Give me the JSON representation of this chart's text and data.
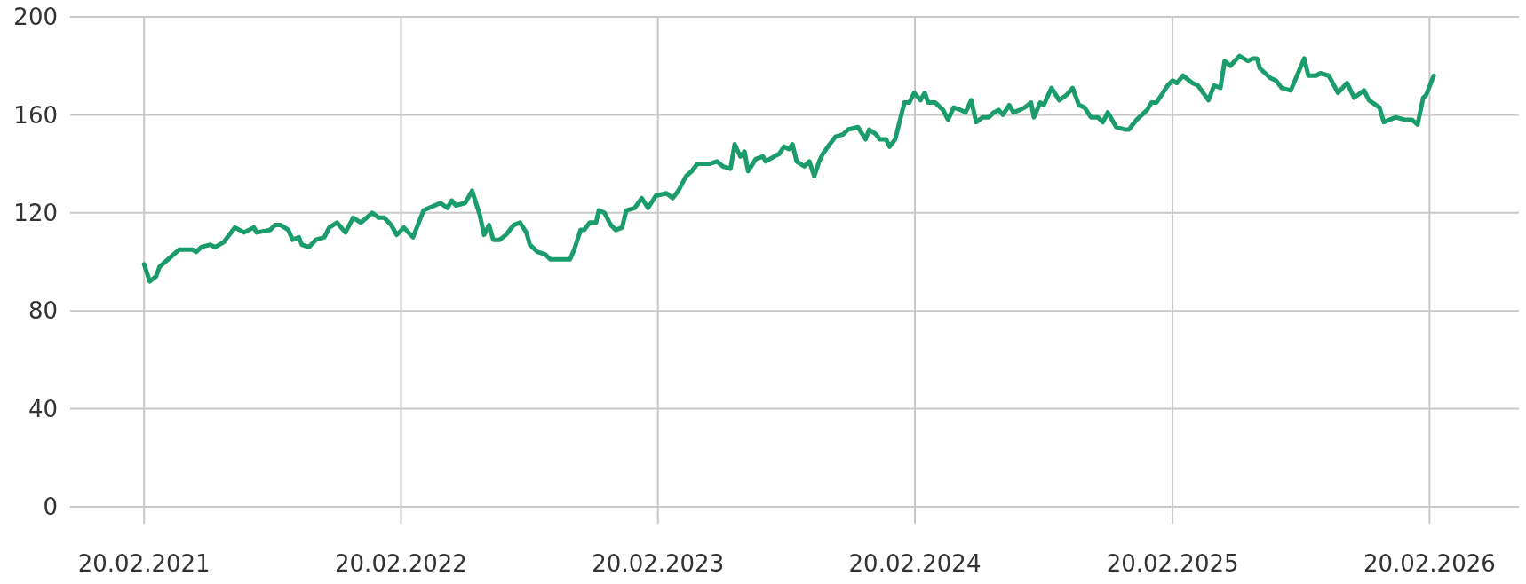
{
  "chart_data": {
    "type": "line",
    "grid": true,
    "xlim": [
      "2020-11-07",
      "2026-06-27"
    ],
    "ylim": [
      0,
      200
    ],
    "yticks": [
      0,
      40,
      80,
      120,
      160,
      200
    ],
    "xticks": [
      {
        "value": "2021-02-20",
        "label": "20.02.2021"
      },
      {
        "value": "2022-02-20",
        "label": "20.02.2022"
      },
      {
        "value": "2023-02-20",
        "label": "20.02.2023"
      },
      {
        "value": "2024-02-20",
        "label": "20.02.2024"
      },
      {
        "value": "2025-02-20",
        "label": "20.02.2025"
      },
      {
        "value": "2026-02-20",
        "label": "20.02.2026"
      }
    ],
    "x": [
      "2021-02-20",
      "2021-02-28",
      "2021-03-09",
      "2021-03-14",
      "2021-03-26",
      "2021-04-11",
      "2021-04-30",
      "2021-05-05",
      "2021-05-12",
      "2021-05-25",
      "2021-06-01",
      "2021-06-13",
      "2021-06-29",
      "2021-07-12",
      "2021-07-26",
      "2021-07-30",
      "2021-08-18",
      "2021-08-25",
      "2021-09-02",
      "2021-09-13",
      "2021-09-19",
      "2021-09-28",
      "2021-10-02",
      "2021-10-12",
      "2021-10-22",
      "2021-11-03",
      "2021-11-10",
      "2021-11-21",
      "2021-12-03",
      "2021-12-14",
      "2021-12-25",
      "2022-01-10",
      "2022-01-19",
      "2022-01-27",
      "2022-02-06",
      "2022-02-14",
      "2022-02-24",
      "2022-03-09",
      "2022-03-24",
      "2022-04-17",
      "2022-04-27",
      "2022-05-03",
      "2022-05-09",
      "2022-05-22",
      "2022-06-01",
      "2022-06-12",
      "2022-06-18",
      "2022-06-25",
      "2022-07-01",
      "2022-07-10",
      "2022-07-19",
      "2022-07-30",
      "2022-08-08",
      "2022-08-17",
      "2022-08-22",
      "2022-09-02",
      "2022-09-13",
      "2022-09-20",
      "2022-10-11",
      "2022-10-18",
      "2022-10-24",
      "2022-11-02",
      "2022-11-07",
      "2022-11-15",
      "2022-11-24",
      "2022-11-28",
      "2022-12-06",
      "2022-12-15",
      "2022-12-22",
      "2022-12-31",
      "2023-01-06",
      "2023-01-18",
      "2023-01-28",
      "2023-02-06",
      "2023-02-17",
      "2023-03-04",
      "2023-03-13",
      "2023-03-21",
      "2023-04-01",
      "2023-04-09",
      "2023-04-17",
      "2023-05-04",
      "2023-05-15",
      "2023-05-23",
      "2023-06-03",
      "2023-06-09",
      "2023-06-17",
      "2023-06-23",
      "2023-06-28",
      "2023-07-09",
      "2023-07-19",
      "2023-07-23",
      "2023-08-04",
      "2023-08-11",
      "2023-08-18",
      "2023-08-25",
      "2023-08-30",
      "2023-09-05",
      "2023-09-16",
      "2023-09-23",
      "2023-09-30",
      "2023-10-07",
      "2023-10-12",
      "2023-10-22",
      "2023-10-30",
      "2023-11-10",
      "2023-11-17",
      "2023-12-01",
      "2023-12-12",
      "2023-12-17",
      "2023-12-27",
      "2024-01-01",
      "2024-01-10",
      "2024-01-15",
      "2024-01-23",
      "2024-02-05",
      "2024-02-12",
      "2024-02-19",
      "2024-02-28",
      "2024-03-05",
      "2024-03-10",
      "2024-03-20",
      "2024-03-31",
      "2024-04-07",
      "2024-04-15",
      "2024-04-25",
      "2024-05-02",
      "2024-05-10",
      "2024-05-17",
      "2024-05-26",
      "2024-06-04",
      "2024-06-11",
      "2024-06-18",
      "2024-06-24",
      "2024-07-03",
      "2024-07-09",
      "2024-07-18",
      "2024-07-25",
      "2024-08-03",
      "2024-08-07",
      "2024-08-16",
      "2024-08-21",
      "2024-09-01",
      "2024-09-12",
      "2024-09-22",
      "2024-10-01",
      "2024-10-10",
      "2024-10-18",
      "2024-10-27",
      "2024-11-06",
      "2024-11-13",
      "2024-11-20",
      "2024-12-02",
      "2024-12-14",
      "2024-12-20",
      "2024-12-31",
      "2025-01-15",
      "2025-01-21",
      "2025-01-28",
      "2025-02-04",
      "2025-02-13",
      "2025-02-20",
      "2025-02-26",
      "2025-03-07",
      "2025-03-20",
      "2025-03-28",
      "2025-04-12",
      "2025-04-20",
      "2025-04-29",
      "2025-05-05",
      "2025-05-13",
      "2025-05-26",
      "2025-06-07",
      "2025-06-14",
      "2025-06-20",
      "2025-06-24",
      "2025-07-09",
      "2025-07-17",
      "2025-07-25",
      "2025-08-07",
      "2025-08-26",
      "2025-09-01",
      "2025-09-12",
      "2025-09-18",
      "2025-09-30",
      "2025-10-13",
      "2025-10-26",
      "2025-11-05",
      "2025-11-19",
      "2025-11-26",
      "2025-12-11",
      "2025-12-17",
      "2026-01-03",
      "2026-01-15",
      "2026-01-26",
      "2026-02-03",
      "2026-02-11",
      "2026-02-15",
      "2026-02-26"
    ],
    "series": [
      {
        "color": "#1a9c6c",
        "values": [
          99,
          92,
          94,
          98,
          101,
          105,
          105,
          104,
          106,
          107,
          106,
          108,
          114,
          112,
          114,
          112,
          113,
          115,
          115,
          113,
          109,
          110,
          107,
          106,
          109,
          110,
          114,
          116,
          112,
          118,
          116,
          120,
          118,
          118,
          115,
          111,
          114,
          110,
          121,
          124,
          122,
          125,
          123,
          124,
          129,
          119,
          111,
          115,
          109,
          109,
          111,
          115,
          116,
          112,
          107,
          104,
          103,
          101,
          101,
          101,
          105,
          113,
          113,
          116,
          116,
          121,
          120,
          115,
          113,
          114,
          121,
          122,
          126,
          122,
          127,
          128,
          126,
          129,
          135,
          137,
          140,
          140,
          141,
          139,
          138,
          148,
          143,
          145,
          137,
          142,
          143,
          141,
          143,
          144,
          147,
          146,
          148,
          141,
          139,
          141,
          135,
          141,
          144,
          148,
          151,
          152,
          154,
          155,
          150,
          154,
          152,
          150,
          150,
          147,
          150,
          165,
          165,
          169,
          166,
          169,
          165,
          165,
          162,
          158,
          163,
          162,
          161,
          166,
          157,
          159,
          159,
          161,
          162,
          160,
          164,
          161,
          162,
          163,
          165,
          159,
          165,
          164,
          171,
          166,
          168,
          171,
          164,
          163,
          159,
          159,
          157,
          161,
          155,
          154,
          154,
          158,
          162,
          165,
          165,
          168,
          172,
          174,
          173,
          176,
          173,
          172,
          166,
          172,
          171,
          182,
          180,
          184,
          182,
          183,
          183,
          179,
          175,
          174,
          171,
          170,
          183,
          176,
          176,
          177,
          176,
          169,
          173,
          167,
          170,
          166,
          163,
          157,
          159,
          158,
          158,
          156,
          167,
          168,
          176
        ]
      }
    ]
  }
}
